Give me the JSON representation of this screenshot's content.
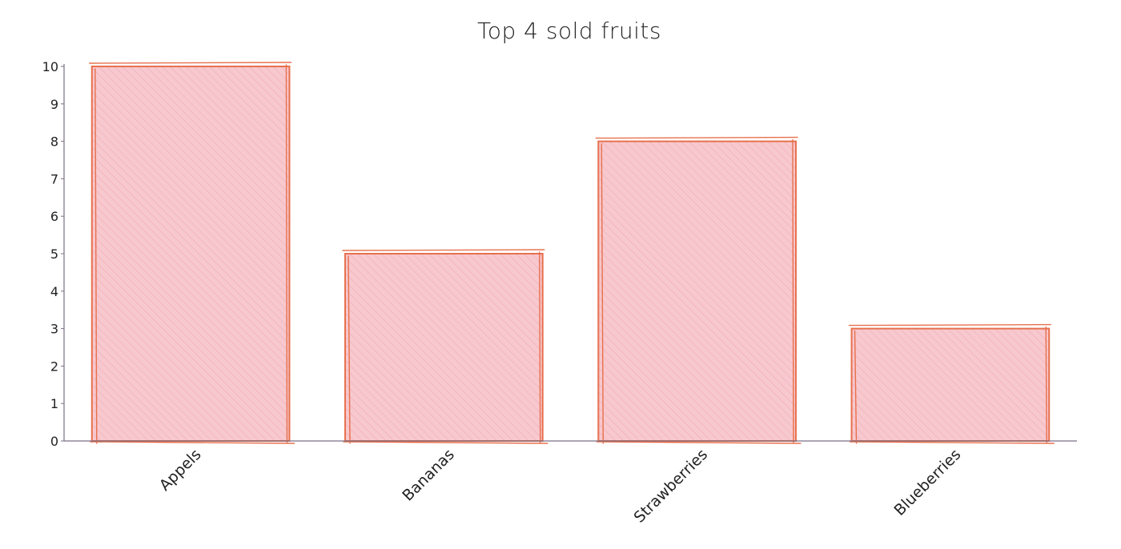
{
  "chart_data": {
    "type": "bar",
    "title": "Top 4 sold fruits",
    "xlabel": "",
    "ylabel": "",
    "categories": [
      "Appels",
      "Bananas",
      "Strawberries",
      "Blueberries"
    ],
    "values": [
      10,
      5,
      8,
      3
    ],
    "ylim": [
      0,
      10
    ],
    "yticks": [
      "0",
      "1",
      "2",
      "3",
      "4",
      "5",
      "6",
      "7",
      "8",
      "9",
      "10"
    ],
    "grid": false,
    "legend": "none",
    "colors": {
      "bar_fill": "#f7c9cf",
      "bar_hatch": "#f1a9b3",
      "bar_stroke": "#e8704d",
      "axis": "#7a6f86",
      "text": "#222222"
    }
  }
}
